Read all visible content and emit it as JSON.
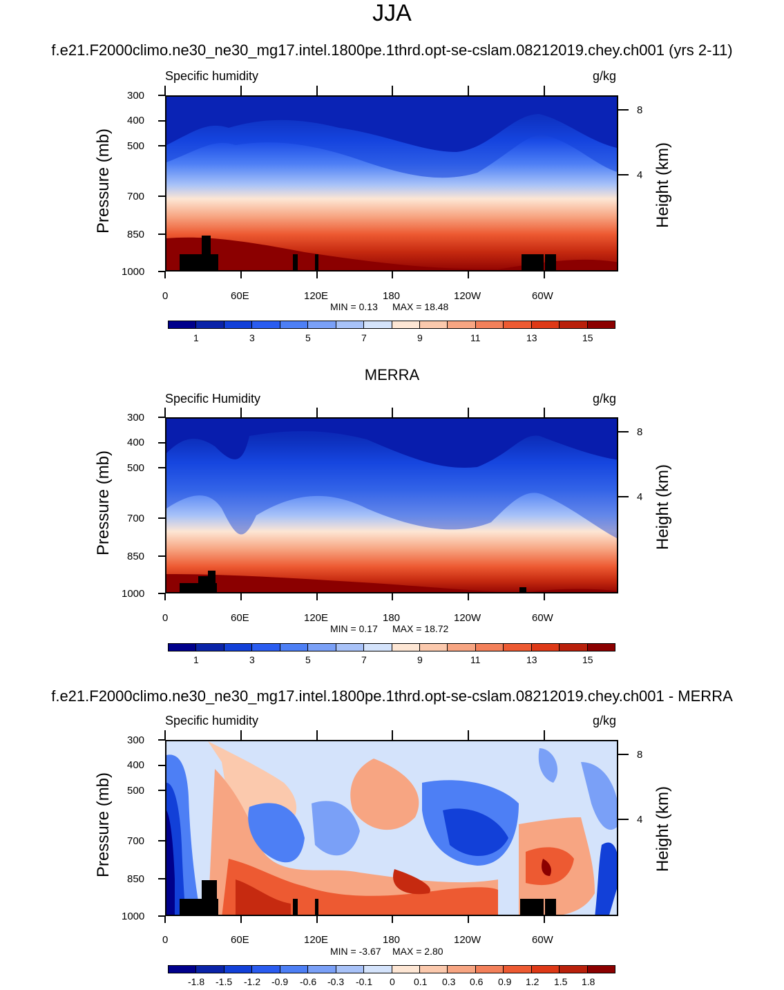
{
  "title": "JJA",
  "run_title": "f.e21.F2000climo.ne30_ne30_mg17.intel.1800pe.1thrd.opt-se-cslam.08212019.chey.ch001 (yrs 2-11)",
  "merra_title": "MERRA",
  "diff_title": "f.e21.F2000climo.ne30_ne30_mg17.intel.1800pe.1thrd.opt-se-cslam.08212019.chey.ch001 - MERRA",
  "chart_data": [
    {
      "type": "heatmap",
      "variable": "Specific humidity",
      "units": "g/kg",
      "ylabel": "Pressure (mb)",
      "y2label": "Height (km)",
      "yticks": [
        "300",
        "400",
        "500",
        "700",
        "850",
        "1000"
      ],
      "y2ticks": [
        "8",
        "4"
      ],
      "xticks": [
        "0",
        "60E",
        "120E",
        "180",
        "120W",
        "60W"
      ],
      "min_label": "MIN =   0.13",
      "max_label": "MAX =  18.48",
      "min": 0.13,
      "max": 18.48,
      "colorbar_labels": [
        "1",
        "3",
        "5",
        "7",
        "9",
        "11",
        "13",
        "15"
      ]
    },
    {
      "type": "heatmap",
      "variable": "Specific Humidity",
      "units": "g/kg",
      "ylabel": "Pressure (mb)",
      "y2label": "Height (km)",
      "yticks": [
        "300",
        "400",
        "500",
        "700",
        "850",
        "1000"
      ],
      "y2ticks": [
        "8",
        "4"
      ],
      "xticks": [
        "0",
        "60E",
        "120E",
        "180",
        "120W",
        "60W"
      ],
      "min_label": "MIN =   0.17",
      "max_label": "MAX =  18.72",
      "min": 0.17,
      "max": 18.72,
      "colorbar_labels": [
        "1",
        "3",
        "5",
        "7",
        "9",
        "11",
        "13",
        "15"
      ]
    },
    {
      "type": "heatmap",
      "variable": "Specific humidity",
      "units": "g/kg",
      "ylabel": "Pressure (mb)",
      "y2label": "Height (km)",
      "yticks": [
        "300",
        "400",
        "500",
        "700",
        "850",
        "1000"
      ],
      "y2ticks": [
        "8",
        "4"
      ],
      "xticks": [
        "0",
        "60E",
        "120E",
        "180",
        "120W",
        "60W"
      ],
      "min_label": "MIN =  -3.67",
      "max_label": "MAX =   2.80",
      "min": -3.67,
      "max": 2.8,
      "colorbar_labels": [
        "-1.8",
        "-1.5",
        "-1.2",
        "-0.9",
        "-0.6",
        "-0.3",
        "-0.1",
        "0",
        "0.1",
        "0.3",
        "0.6",
        "0.9",
        "1.2",
        "1.5",
        "1.8"
      ]
    }
  ],
  "palette": [
    "#00008b",
    "#0a23a8",
    "#1240d8",
    "#2a5cf0",
    "#4d7ff5",
    "#7aa0f7",
    "#a8c2f8",
    "#d4e3fb",
    "#fde6d4",
    "#fbc9ad",
    "#f7a582",
    "#f3805a",
    "#ed5a32",
    "#de3917",
    "#b9200b",
    "#8b0000"
  ]
}
